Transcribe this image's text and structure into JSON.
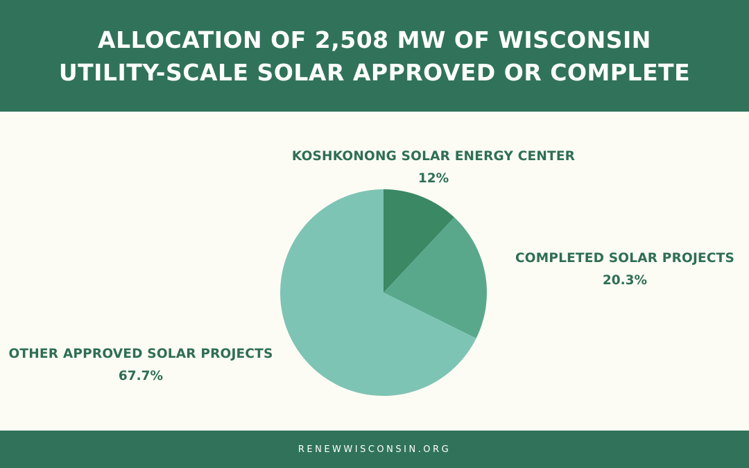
{
  "header": {
    "title_line1": "ALLOCATION OF 2,508 MW OF WISCONSIN",
    "title_line2": "UTILITY-SCALE SOLAR APPROVED OR COMPLETE"
  },
  "footer": {
    "text": "RENEWWISCONSIN.ORG"
  },
  "colors": {
    "header_bg": "#30735a",
    "label_text": "#2f6e55",
    "background": "#fcfcf5"
  },
  "chart_data": {
    "type": "pie",
    "title": "ALLOCATION OF 2,508 MW OF WISCONSIN UTILITY-SCALE SOLAR APPROVED OR COMPLETE",
    "slices": [
      {
        "label": "KOSHKONONG SOLAR ENERGY CENTER",
        "value": 12,
        "value_label": "12%",
        "color": "#3a8864"
      },
      {
        "label": "COMPLETED SOLAR PROJECTS",
        "value": 20.3,
        "value_label": "20.3%",
        "color": "#59a88c"
      },
      {
        "label": "OTHER APPROVED SOLAR PROJECTS",
        "value": 67.7,
        "value_label": "67.7%",
        "color": "#7ec4b4"
      }
    ],
    "start_angle": "12 o'clock",
    "direction": "clockwise",
    "legend": "none (direct labels)"
  }
}
